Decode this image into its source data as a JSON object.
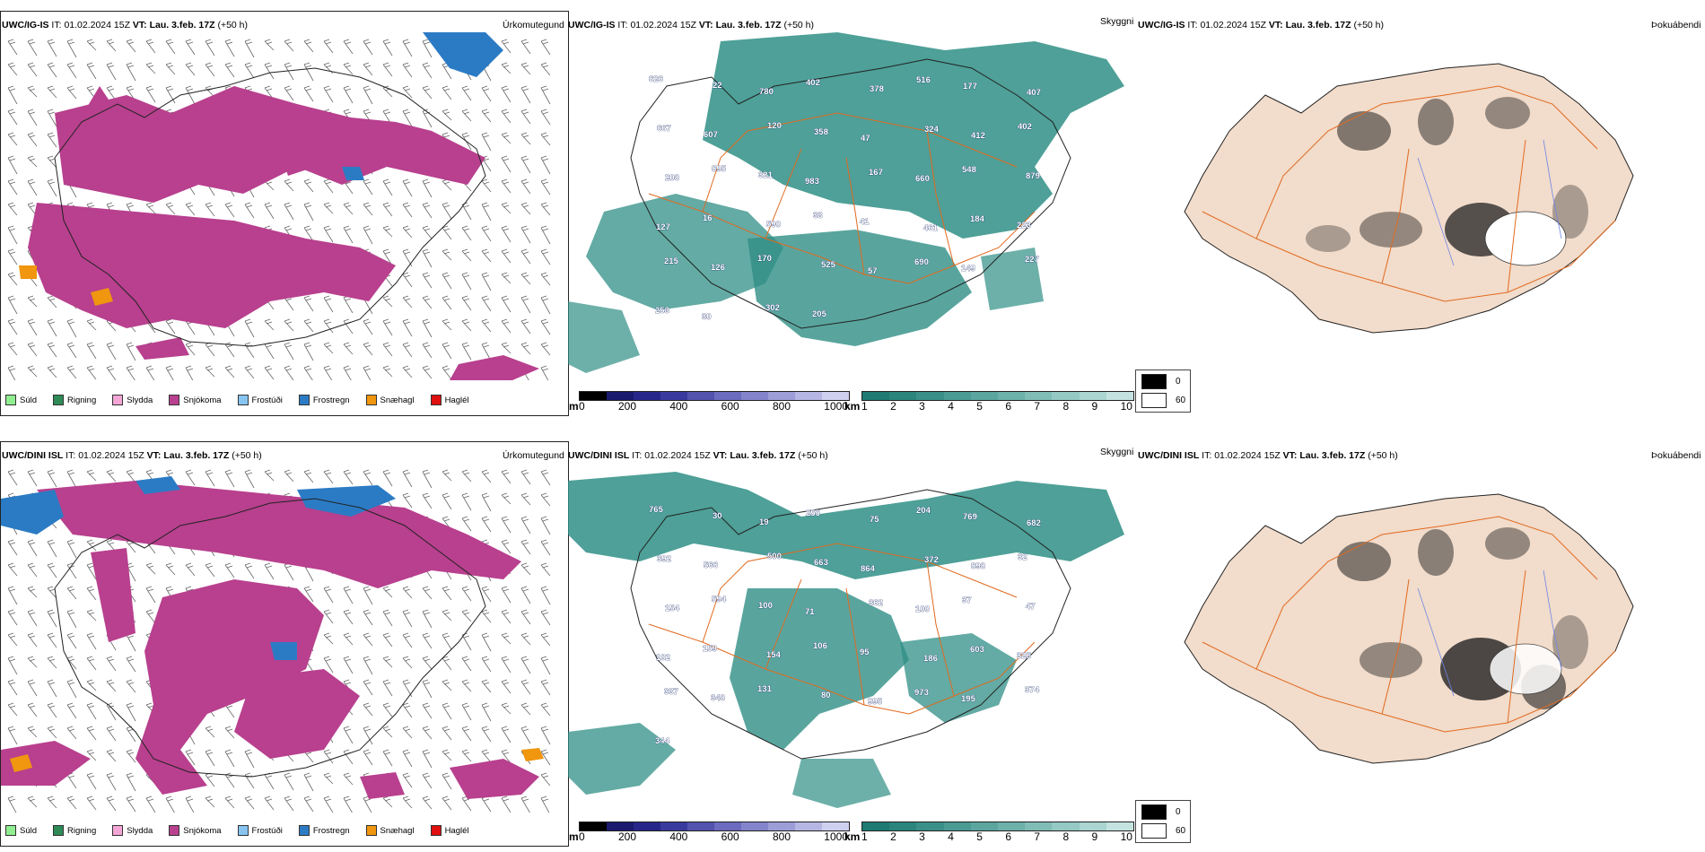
{
  "rows": [
    {
      "id": "ig",
      "precip": {
        "model": "UWC/IG-IS",
        "it_label": "IT:",
        "it_value": "01.02.2024 15Z",
        "vt_label": "VT:",
        "vt_value": "Lau. 3.feb. 17Z",
        "lead": "(+50 h)",
        "type_label": "Úrkomutegund"
      },
      "vis": {
        "model": "UWC/IG-IS",
        "it_label": "IT:",
        "it_value": "01.02.2024 15Z",
        "vt_label": "VT:",
        "vt_value": "Lau. 3.feb. 17Z",
        "lead": "(+50 h)",
        "type_label": "Skyggni",
        "stations": [
          "626",
          "22",
          "780",
          "402",
          "378",
          "516",
          "177",
          "407",
          "667",
          "607",
          "120",
          "358",
          "47",
          "324",
          "412",
          "402",
          "208",
          "895",
          "321",
          "983",
          "167",
          "660",
          "548",
          "879",
          "127",
          "16",
          "590",
          "33",
          "41",
          "461",
          "184",
          "223",
          "215",
          "126",
          "170",
          "525",
          "57",
          "690",
          "149",
          "227",
          "253",
          "30",
          "302",
          "205"
        ]
      },
      "fog": {
        "model": "UWC/IG-IS",
        "it_label": "IT:",
        "it_value": "01.02.2024 15Z",
        "vt_label": "VT:",
        "vt_value": "Lau. 3.feb. 17Z",
        "lead": "(+50 h)",
        "type_label": "Þokuábendi"
      }
    },
    {
      "id": "dini",
      "precip": {
        "model": "UWC/DINI ISL",
        "it_label": "IT:",
        "it_value": "01.02.2024 15Z",
        "vt_label": "VT:",
        "vt_value": "Lau. 3.feb. 17Z",
        "lead": "(+50 h)",
        "type_label": "Úrkomutegund"
      },
      "vis": {
        "model": "UWC/DINI ISL",
        "it_label": "IT:",
        "it_value": "01.02.2024 15Z",
        "vt_label": "VT:",
        "vt_value": "Lau. 3.feb. 17Z",
        "lead": "(+50 h)",
        "type_label": "Skyggni",
        "stations": [
          "765",
          "30",
          "19",
          "255",
          "75",
          "204",
          "769",
          "682",
          "392",
          "566",
          "500",
          "663",
          "864",
          "372",
          "898",
          "32",
          "154",
          "594",
          "100",
          "71",
          "362",
          "100",
          "37",
          "47",
          "182",
          "159",
          "154",
          "106",
          "95",
          "186",
          "603",
          "325",
          "337",
          "348",
          "131",
          "80",
          "995",
          "973",
          "195",
          "374",
          "344"
        ]
      },
      "fog": {
        "model": "UWC/DINI ISL",
        "it_label": "IT:",
        "it_value": "01.02.2024 15Z",
        "vt_label": "VT:",
        "vt_value": "Lau. 3.feb. 17Z",
        "lead": "(+50 h)",
        "type_label": "Þokuábendi"
      }
    }
  ],
  "precip_legend": [
    {
      "label": "Súld",
      "color": "#90ee90"
    },
    {
      "label": "Rigning",
      "color": "#2e8b57"
    },
    {
      "label": "Slydda",
      "color": "#f4a6d7"
    },
    {
      "label": "Snjókoma",
      "color": "#b8408e"
    },
    {
      "label": "Frostúði",
      "color": "#87c4f0"
    },
    {
      "label": "Frostregn",
      "color": "#2b7bc4"
    },
    {
      "label": "Snæhagl",
      "color": "#f0960f"
    },
    {
      "label": "Haglél",
      "color": "#e01010"
    }
  ],
  "elevation_bar": {
    "unit": "m",
    "ticks": [
      "0",
      "200",
      "400",
      "600",
      "800",
      "1000"
    ],
    "colors": [
      "#000000",
      "#1a1a6e",
      "#26268a",
      "#3a3a9e",
      "#5353ae",
      "#6b6bbf",
      "#8484cc",
      "#9d9dd8",
      "#b6b6e4",
      "#cfcff0"
    ]
  },
  "visibility_bar": {
    "unit": "km",
    "ticks": [
      "1",
      "2",
      "3",
      "4",
      "5",
      "6",
      "7",
      "8",
      "9",
      "10"
    ],
    "colors": [
      "#1e7a72",
      "#2b857d",
      "#3a9088",
      "#4a9b94",
      "#5ba69f",
      "#6db1ab",
      "#80bdb7",
      "#94c9c4",
      "#aad5d1",
      "#c4e3e0"
    ]
  },
  "fog_legend": [
    {
      "label": "0",
      "color": "#000000"
    },
    {
      "label": "60",
      "color": "#ffffff"
    }
  ],
  "colors": {
    "snow": "#b8408e",
    "freezing_rain": "#2b7bc4",
    "ice_pellets": "#f0960f",
    "drizzle": "#90ee90",
    "visibility_teal": "#2f8f86",
    "elevation_blue": "#3a3aa0",
    "road_orange": "#e06a20",
    "land_fog": "#f2dccb",
    "river_blue": "#6f86e8"
  }
}
